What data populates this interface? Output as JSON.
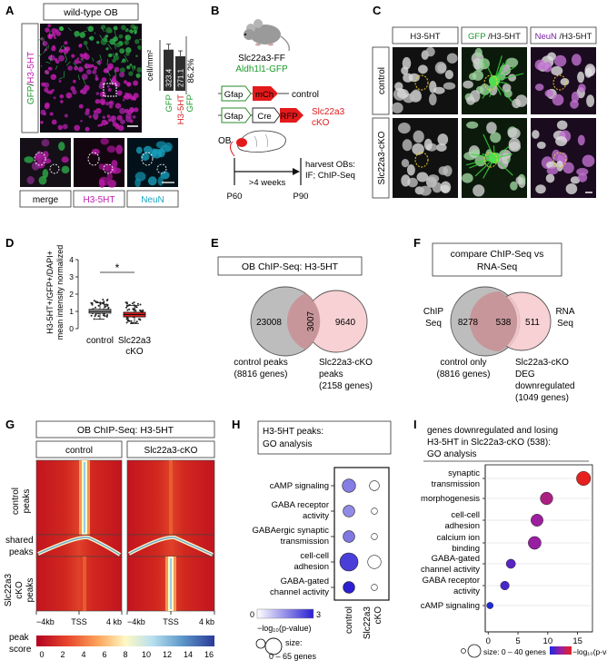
{
  "panels": {
    "A": {
      "letter": "A",
      "title": "wild-type OB",
      "side_label_green": "GFP",
      "side_label_slash": "/",
      "side_label_magenta": "H3-5HT",
      "ylabel": "cell/mm²",
      "pct": "86.2%",
      "bar_values": [
        "323.4",
        "271.1"
      ],
      "bar_labels": [
        {
          "parts": [
            "GFP"
          ]
        },
        {
          "parts": [
            "H3-5HT",
            "GFP"
          ]
        }
      ],
      "sub_labels": [
        "merge",
        "H3-5HT",
        "NeuN"
      ]
    },
    "B": {
      "letter": "B",
      "mouse_line1": "Slc22a3-FF",
      "mouse_line2": "Aldh1l1-GFP",
      "construct1": {
        "promoter": "Gfap",
        "gene": "mCh",
        "label": "control"
      },
      "construct2": {
        "promoter": "Gfap",
        "gene1": "Cre",
        "gene2": "RFP",
        "label1": "Slc22a3",
        "label2": "cKO"
      },
      "ob": "OB",
      "arrow_label": ">4 weeks",
      "harvest1": "harvest OBs:",
      "harvest2": "IF; ChIP-Seq",
      "t0": "P60",
      "t1": "P90"
    },
    "C": {
      "letter": "C",
      "col_headers": [
        {
          "parts": [
            {
              "t": "H3-5HT",
              "c": "#111111"
            }
          ]
        },
        {
          "parts": [
            {
              "t": "GFP",
              "c": "#1a9a2a"
            },
            {
              "t": " /H3-5HT",
              "c": "#111111"
            }
          ]
        },
        {
          "parts": [
            {
              "t": "NeuN",
              "c": "#7a1fa2"
            },
            {
              "t": " /H3-5HT",
              "c": "#111111"
            }
          ]
        }
      ],
      "row_labels": [
        "control",
        "Slc22a3-cKO"
      ]
    },
    "D": {
      "letter": "D",
      "ylabel1": "H3-5HT+/GFP+/DAPI+",
      "ylabel2": "mean intensity normalized",
      "yticks": [
        "0",
        "1",
        "2",
        "3",
        "4"
      ],
      "groups": [
        "control",
        "Slc22a3",
        "cKO"
      ],
      "sig": "*"
    },
    "E": {
      "letter": "E",
      "title": "OB ChIP-Seq: H3-5HT",
      "left": "23008",
      "overlap": "3007",
      "right": "9640",
      "left_label1": "control peaks",
      "left_label2": "(8816 genes)",
      "right_label1": "Slc22a3-cKO",
      "right_label2": "peaks",
      "right_label3": "(2158 genes)"
    },
    "F": {
      "letter": "F",
      "title1": "compare ChIP-Seq vs",
      "title2": "RNA-Seq",
      "left_tag1": "ChIP",
      "left_tag2": "Seq",
      "right_tag1": "RNA",
      "right_tag2": "Seq",
      "left": "8278",
      "overlap": "538",
      "right": "511",
      "left_label1": "control only",
      "left_label2": "(8816 genes)",
      "right_label1": "Slc22a3-cKO",
      "right_label2": "DEG",
      "right_label3": "downregulated",
      "right_label4": "(1049 genes)"
    },
    "G": {
      "letter": "G",
      "title": "OB ChIP-Seq: H3-5HT",
      "cols": [
        "control",
        "Slc22a3-cKO"
      ],
      "row1a": "control",
      "row1b": "peaks",
      "row2a": "shared",
      "row2b": "peaks",
      "row3a": "Slc22a3",
      "row3b": "cKO",
      "row3c": "peaks",
      "xticks": [
        "−4kb",
        "TSS",
        "4 kb",
        "−4kb",
        "TSS",
        "4 kb"
      ],
      "cbar_label1": "peak",
      "cbar_label2": "score",
      "cbar_ticks": [
        "0",
        "2",
        "4",
        "6",
        "8",
        "10",
        "12",
        "14",
        "16"
      ]
    },
    "H": {
      "letter": "H",
      "title1": "H3-5HT peaks:",
      "title2": "GO analysis",
      "terms": [
        {
          "l1": "cAMP signaling",
          "l2": ""
        },
        {
          "l1": "GABA receptor",
          "l2": "activity"
        },
        {
          "l1": "GABAergic synaptic",
          "l2": "transmission"
        },
        {
          "l1": "cell-cell",
          "l2": "adhesion"
        },
        {
          "l1": "GABA-gated",
          "l2": "channel activity"
        }
      ],
      "cols": [
        "control",
        "Slc22a3",
        "cKO"
      ],
      "legend_lo": "0",
      "legend_hi": "3",
      "legend_label": "−log₁₀(p-value)",
      "size_label1": "size:",
      "size_label2": "0 – 65 genes"
    },
    "I": {
      "letter": "I",
      "title1": "genes downregulated and losing",
      "title2": "H3-5HT in Slc22a3-cKO (538):",
      "title3": "GO analysis",
      "terms": [
        {
          "l1": "synaptic",
          "l2": "transmission"
        },
        {
          "l1": "morphogenesis",
          "l2": ""
        },
        {
          "l1": "cell-cell",
          "l2": "adhesion"
        },
        {
          "l1": "calcium ion",
          "l2": "binding"
        },
        {
          "l1": "GABA-gated",
          "l2": "channel activity"
        },
        {
          "l1": "GABA receptor",
          "l2": "activity"
        },
        {
          "l1": "cAMP signaling",
          "l2": ""
        }
      ],
      "xticks": [
        "0",
        "5",
        "10",
        "15"
      ],
      "size_label": "size: 0 – 40 genes",
      "color_label": "−log₁₀(p-value)"
    }
  },
  "chart_data": [
    {
      "type": "bar",
      "panel": "A",
      "categories": [
        "GFP",
        "H3-5HT GFP"
      ],
      "values": [
        323.4,
        271.1
      ],
      "ylabel": "cell/mm²",
      "colors": [
        "#2f2f2f",
        "#2f2f2f"
      ]
    },
    {
      "type": "box",
      "panel": "D",
      "categories": [
        "control",
        "Slc22a3 cKO"
      ],
      "median": [
        1.0,
        0.82
      ],
      "q1": [
        0.9,
        0.68
      ],
      "q3": [
        1.12,
        0.95
      ],
      "whisker_low": [
        0.55,
        0.3
      ],
      "whisker_high": [
        1.5,
        1.35
      ],
      "ylim": [
        0,
        4
      ],
      "colors": [
        "#b5b5b5",
        "#e02020"
      ]
    },
    {
      "type": "scatter",
      "panel": "H",
      "categories": [
        "control",
        "Slc22a3 cKO"
      ],
      "terms": [
        "cAMP signaling",
        "GABA receptor activity",
        "GABAergic synaptic transmission",
        "cell-cell adhesion",
        "GABA-gated channel activity"
      ],
      "neglog10p_control": [
        1.5,
        1.3,
        1.6,
        2.5,
        3.0
      ],
      "neglog10p_cko": [
        0,
        0,
        0,
        0,
        0
      ],
      "genes_control": [
        25,
        15,
        15,
        65,
        15
      ],
      "genes_cko": [
        20,
        5,
        5,
        45,
        5
      ],
      "colors": {
        "low": "#ffffff",
        "high": "#2b1fd1"
      }
    },
    {
      "type": "scatter",
      "panel": "I",
      "terms": [
        "synaptic transmission",
        "morphogenesis",
        "cell-cell adhesion",
        "calcium ion binding",
        "GABA-gated channel activity",
        "GABA receptor activity",
        "cAMP signaling"
      ],
      "x": [
        16.0,
        9.8,
        8.2,
        7.8,
        3.8,
        2.8,
        0.3
      ],
      "genes": [
        38,
        28,
        26,
        30,
        12,
        10,
        4
      ],
      "xlim": [
        -0.5,
        17.5
      ],
      "colors": {
        "low": "#2020e0",
        "high": "#e02020"
      }
    },
    {
      "type": "heatmap",
      "panel": "G",
      "colormap": [
        "#b30021",
        "#f06b3a",
        "#fdd58d",
        "#fff9c8",
        "#b7def0",
        "#4f8fc5",
        "#2b3d9b"
      ],
      "range": [
        0,
        16
      ]
    }
  ]
}
